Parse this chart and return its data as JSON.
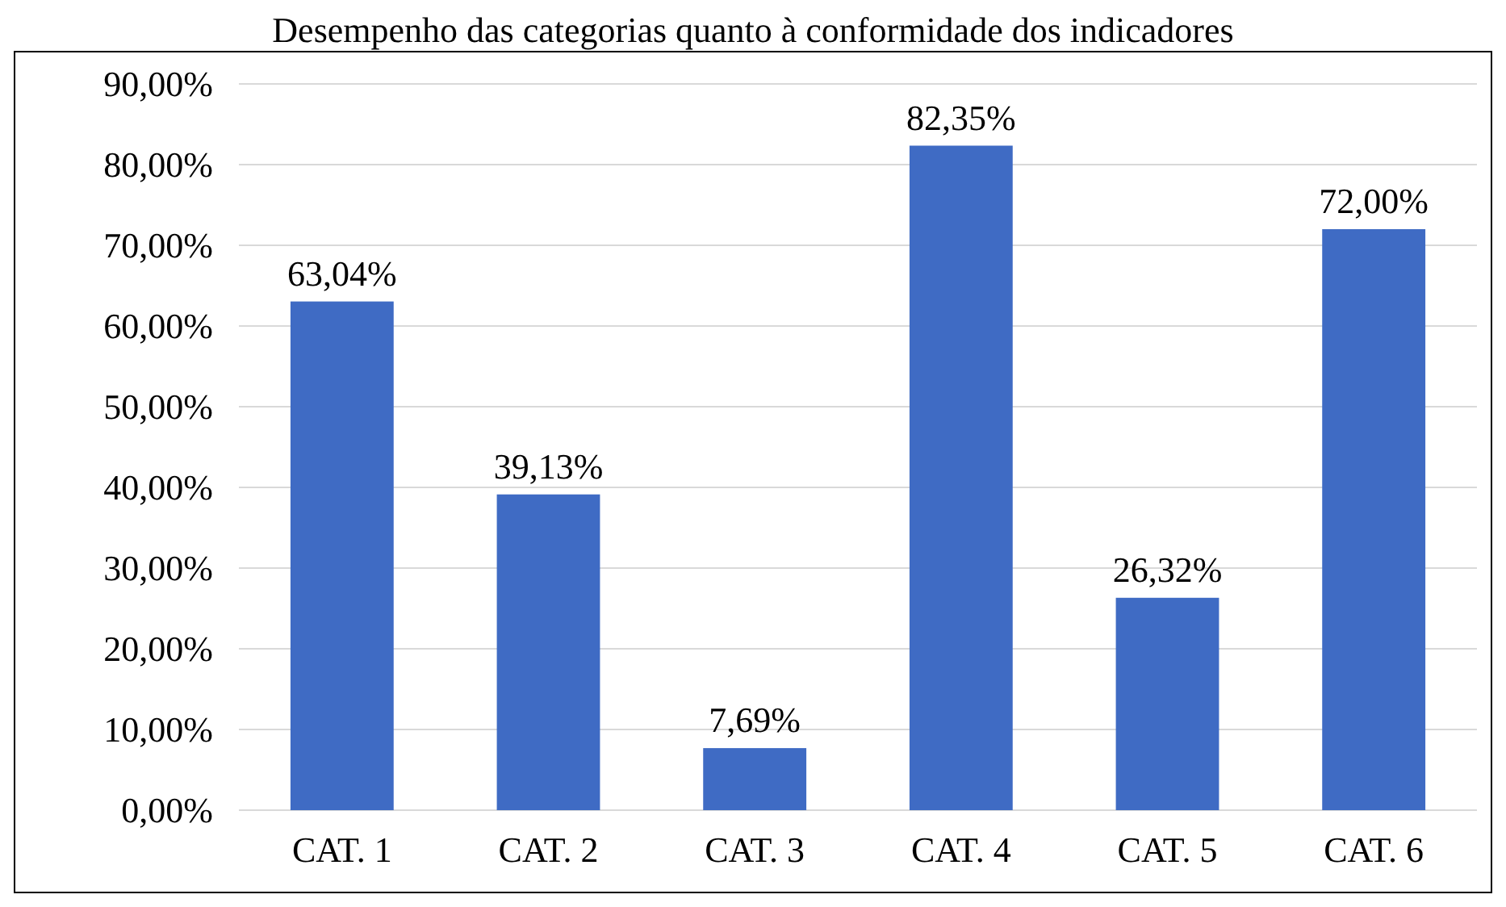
{
  "chart_data": {
    "type": "bar",
    "title": "Desempenho das categorias quanto à conformidade dos indicadores",
    "categories": [
      "CAT. 1",
      "CAT. 2",
      "CAT. 3",
      "CAT. 4",
      "CAT. 5",
      "CAT. 6"
    ],
    "values": [
      63.04,
      39.13,
      7.69,
      82.35,
      26.32,
      72.0
    ],
    "value_labels": [
      "63,04%",
      "39,13%",
      "7,69%",
      "82,35%",
      "26,32%",
      "72,00%"
    ],
    "color": "#3f6bc4",
    "ylim": [
      0,
      90
    ],
    "yticks": [
      {
        "value": 0,
        "label": "0,00%"
      },
      {
        "value": 10,
        "label": "10,00%"
      },
      {
        "value": 20,
        "label": "20,00%"
      },
      {
        "value": 30,
        "label": "30,00%"
      },
      {
        "value": 40,
        "label": "40,00%"
      },
      {
        "value": 50,
        "label": "50,00%"
      },
      {
        "value": 60,
        "label": "60,00%"
      },
      {
        "value": 70,
        "label": "70,00%"
      },
      {
        "value": 80,
        "label": "80,00%"
      },
      {
        "value": 90,
        "label": "90,00%"
      }
    ],
    "grid": "y"
  }
}
